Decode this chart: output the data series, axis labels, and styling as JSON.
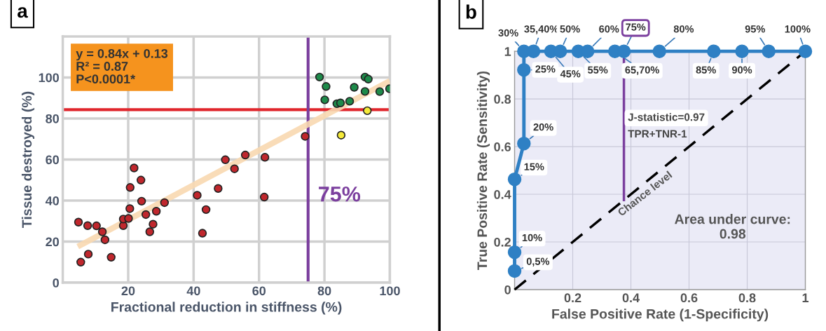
{
  "chart_data": [
    {
      "type": "scatter",
      "title": "a",
      "xlabel": "Fractional reduction in stiffness (%)",
      "ylabel": "Tissue destroyed (%)",
      "xlim": [
        0,
        100
      ],
      "ylim": [
        0,
        120
      ],
      "xticks": [
        20,
        40,
        60,
        80,
        100
      ],
      "yticks": [
        0,
        20,
        40,
        60,
        80,
        100
      ],
      "grid": true,
      "series": [
        {
          "type": "line",
          "color": "#f8d8b0",
          "x": [
            4.6,
            100
          ],
          "values": [
            17.6,
            98.3
          ]
        },
        {
          "color": "#c0272d",
          "marker": "circle",
          "x": [
            4.8,
            5.5,
            7.6,
            7.8,
            10.3,
            12.1,
            12.9,
            14.8,
            18.5,
            18.5,
            20.1,
            20.5,
            20.6,
            21.8,
            23.9,
            24.1,
            25.4,
            26.6,
            27.6,
            28.6,
            31.1,
            41.1,
            42.7,
            43.8,
            47.5,
            49.7,
            52.5,
            55.8,
            61.8,
            61.6,
            74.1
          ],
          "values": [
            29.5,
            10,
            27.8,
            13.9,
            27.7,
            24.8,
            20.9,
            12.4,
            27.8,
            31,
            31.3,
            36.1,
            46.4,
            55.9,
            50,
            39.7,
            33.2,
            24.8,
            28.5,
            34.8,
            39,
            42.6,
            24.1,
            35.6,
            45.9,
            59.9,
            55.5,
            62.2,
            61.1,
            41.7,
            71.3
          ]
        },
        {
          "color": "#1e8a4a",
          "marker": "circle",
          "x": [
            78.5,
            80.5,
            80.1,
            83.8,
            84.9,
            87.7,
            89.1,
            92.4,
            93.4,
            92.4,
            96.9,
            99.9
          ],
          "values": [
            100.2,
            95.6,
            89.1,
            87.2,
            87.6,
            88.4,
            95.2,
            100.2,
            99.2,
            93.2,
            93.1,
            94.5
          ]
        },
        {
          "color": "#f5ea3a",
          "marker": "circle",
          "x": [
            85.1,
            93.1
          ],
          "values": [
            71.9,
            83.8
          ]
        }
      ],
      "ref_lines": [
        {
          "axis": "y",
          "value": 84.3,
          "color": "#e0262c"
        },
        {
          "axis": "x",
          "value": 75,
          "label": "75%",
          "color": "#7b3f9e"
        }
      ],
      "annotations": [
        "y = 0.84x + 0.13\nR² = 0.87\nP<0.0001*"
      ]
    },
    {
      "type": "line",
      "title": "b",
      "xlabel": "False Positive Rate (1-Specificity)",
      "ylabel": "True Positive Rate (Sensitivity)",
      "xlim": [
        0,
        1
      ],
      "ylim": [
        0,
        1
      ],
      "xticks": [
        0.2,
        0.4,
        0.6,
        0.8,
        1
      ],
      "yticks": [
        0,
        0.2,
        0.4,
        0.6,
        0.8,
        1
      ],
      "grid": true,
      "series": [
        {
          "name": "Chance level",
          "color": "#000000",
          "line_style": "dashed",
          "marker": "none",
          "x": [
            0,
            1
          ],
          "values": [
            0,
            1
          ]
        },
        {
          "color": "#7b3f9e",
          "marker": "none",
          "x": [
            0.376,
            0.376
          ],
          "values": [
            0.376,
            1
          ]
        },
        {
          "color": "#2f80c4",
          "marker": "circle",
          "x": [
            0,
            0,
            0,
            0.032,
            0.032,
            0.032,
            0.065,
            0.125,
            0.157,
            0.219,
            0.251,
            0.345,
            0.376,
            0.498,
            0.685,
            0.782,
            0.874,
            1
          ],
          "values": [
            0.078,
            0.157,
            0.463,
            0.613,
            0.922,
            1,
            1,
            1,
            1,
            1,
            1,
            1,
            1,
            1,
            1,
            1,
            1,
            1
          ]
        }
      ],
      "annotations": [
        {
          "text": "0,5%",
          "x": 0,
          "y": 0.078
        },
        {
          "text": "10%",
          "x": 0,
          "y": 0.157
        },
        {
          "text": "15%",
          "x": 0,
          "y": 0.463
        },
        {
          "text": "20%",
          "x": 0.032,
          "y": 0.613
        },
        {
          "text": "25%",
          "x": 0.032,
          "y": 0.922
        },
        {
          "text": "30%",
          "x": 0.032,
          "y": 1
        },
        {
          "text": "35,40%",
          "x": 0.065,
          "y": 1
        },
        {
          "text": "45%",
          "x": 0.125,
          "y": 1
        },
        {
          "text": "50%",
          "x": 0.157,
          "y": 1
        },
        {
          "text": "55%",
          "x": 0.219,
          "y": 1
        },
        {
          "text": "60%",
          "x": 0.251,
          "y": 1
        },
        {
          "text": "65,70%",
          "x": 0.345,
          "y": 1
        },
        {
          "text": "75%",
          "x": 0.376,
          "y": 1
        },
        {
          "text": "80%",
          "x": 0.498,
          "y": 1
        },
        {
          "text": "85%",
          "x": 0.685,
          "y": 1
        },
        {
          "text": "90%",
          "x": 0.782,
          "y": 1
        },
        {
          "text": "95%",
          "x": 0.874,
          "y": 1
        },
        {
          "text": "100%",
          "x": 1,
          "y": 1
        },
        {
          "text": "J-statistic=0.97",
          "x": 0.376,
          "y": 0.72
        },
        {
          "text": "TPR+TNR-1",
          "x": 0.376,
          "y": 0.65
        },
        "Area under curve:\n0.98"
      ]
    }
  ]
}
